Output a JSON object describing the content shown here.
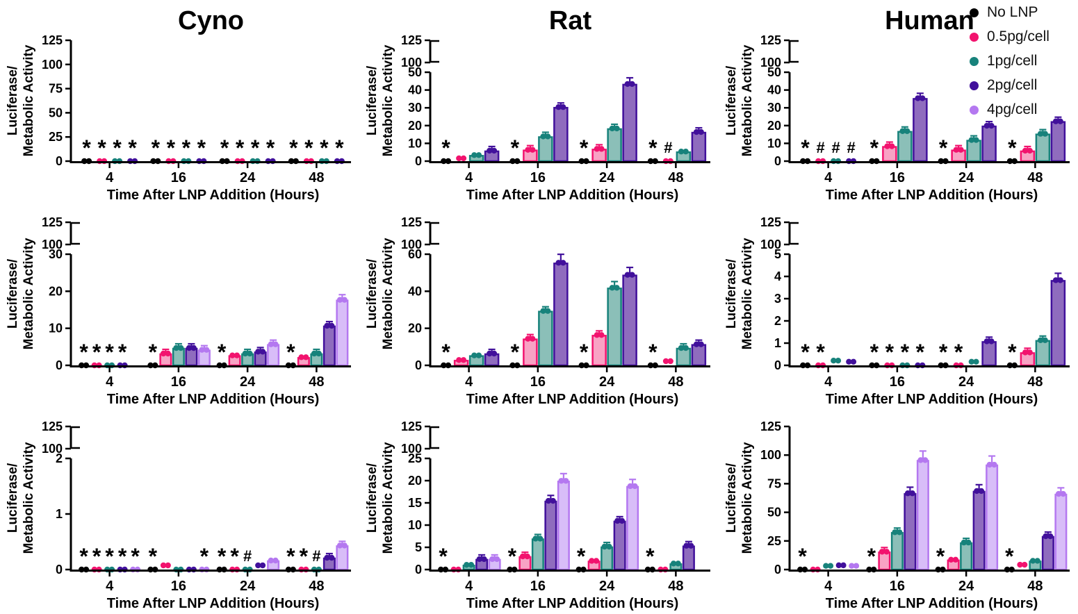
{
  "figure_title": "",
  "axis_labels": {
    "x": "Time After LNP Addition (Hours)",
    "y_line1": "Luciferase/",
    "y_line2": "Metabolic Activity"
  },
  "x_categories": [
    "4",
    "16",
    "24",
    "48"
  ],
  "legend": {
    "items": [
      {
        "label": "No LNP",
        "color": "#000000"
      },
      {
        "label": "0.5pg/cell",
        "color": "#F2136E"
      },
      {
        "label": "1pg/cell",
        "color": "#17827B"
      },
      {
        "label": "2pg/cell",
        "color": "#41109B"
      },
      {
        "label": "4pg/cell",
        "color": "#B478F0"
      }
    ]
  },
  "conditions": [
    {
      "name": "No LNP",
      "stroke": "#000000",
      "fill": "#000000"
    },
    {
      "name": "0.5pg/cell",
      "stroke": "#F2136E",
      "fill": "#F8A2C4"
    },
    {
      "name": "1pg/cell",
      "stroke": "#17827B",
      "fill": "#8BBFB8"
    },
    {
      "name": "2pg/cell",
      "stroke": "#41109B",
      "fill": "#8F6CBE"
    },
    {
      "name": "4pg/cell",
      "stroke": "#B478F0",
      "fill": "#D8BDF8"
    }
  ],
  "chart_data": [
    {
      "id": "cyno-row1",
      "type": "bar",
      "title": "Cyno",
      "axis": {
        "break": false,
        "max": 125,
        "ticks": [
          0,
          25,
          50,
          75,
          100,
          125
        ]
      },
      "series": [
        {
          "name": "No LNP",
          "cond": 0,
          "values": [
            0,
            0,
            0,
            0
          ]
        },
        {
          "name": "0.5pg/cell",
          "cond": 1,
          "values": [
            0,
            0,
            0,
            0
          ]
        },
        {
          "name": "1pg/cell",
          "cond": 2,
          "values": [
            0,
            0,
            0,
            0
          ]
        },
        {
          "name": "2pg/cell",
          "cond": 3,
          "values": [
            0,
            0,
            0,
            0
          ]
        }
      ],
      "marks": [
        {
          "t": 0,
          "s": 0,
          "sym": "*"
        },
        {
          "t": 0,
          "s": 1,
          "sym": "*"
        },
        {
          "t": 0,
          "s": 2,
          "sym": "*"
        },
        {
          "t": 0,
          "s": 3,
          "sym": "*"
        },
        {
          "t": 1,
          "s": 0,
          "sym": "*"
        },
        {
          "t": 1,
          "s": 1,
          "sym": "*"
        },
        {
          "t": 1,
          "s": 2,
          "sym": "*"
        },
        {
          "t": 1,
          "s": 3,
          "sym": "*"
        },
        {
          "t": 2,
          "s": 0,
          "sym": "*"
        },
        {
          "t": 2,
          "s": 1,
          "sym": "*"
        },
        {
          "t": 2,
          "s": 2,
          "sym": "*"
        },
        {
          "t": 2,
          "s": 3,
          "sym": "*"
        },
        {
          "t": 3,
          "s": 0,
          "sym": "*"
        },
        {
          "t": 3,
          "s": 1,
          "sym": "*"
        },
        {
          "t": 3,
          "s": 2,
          "sym": "*"
        },
        {
          "t": 3,
          "s": 3,
          "sym": "*"
        }
      ]
    },
    {
      "id": "rat-row1",
      "type": "bar",
      "title": "Rat",
      "axis": {
        "break": true,
        "lower_max": 50,
        "lower_ticks": [
          0,
          10,
          20,
          30,
          40,
          50
        ],
        "upper_ticks": [
          100,
          125
        ]
      },
      "series": [
        {
          "name": "No LNP",
          "cond": 0,
          "values": [
            0,
            0,
            0,
            0
          ]
        },
        {
          "name": "0.5pg/cell",
          "cond": 1,
          "values": [
            0.8,
            6,
            6.5,
            0.3
          ]
        },
        {
          "name": "1pg/cell",
          "cond": 2,
          "values": [
            3,
            13.5,
            18,
            5
          ]
        },
        {
          "name": "2pg/cell",
          "cond": 3,
          "values": [
            5.5,
            30,
            43,
            16
          ]
        }
      ],
      "marks": [
        {
          "t": 0,
          "s": 0,
          "sym": "*"
        },
        {
          "t": 1,
          "s": 0,
          "sym": "*"
        },
        {
          "t": 2,
          "s": 0,
          "sym": "*"
        },
        {
          "t": 3,
          "s": 0,
          "sym": "*"
        },
        {
          "t": 3,
          "s": 1,
          "sym": "#"
        }
      ]
    },
    {
      "id": "human-row1",
      "type": "bar",
      "title": "Human",
      "axis": {
        "break": true,
        "lower_max": 50,
        "lower_ticks": [
          0,
          10,
          20,
          30,
          40,
          50
        ],
        "upper_ticks": [
          100,
          125
        ]
      },
      "series": [
        {
          "name": "No LNP",
          "cond": 0,
          "values": [
            0,
            0,
            0,
            0
          ]
        },
        {
          "name": "0.5pg/cell",
          "cond": 1,
          "values": [
            0,
            8,
            6,
            5.5
          ]
        },
        {
          "name": "1pg/cell",
          "cond": 2,
          "values": [
            0,
            16.5,
            11.5,
            15
          ]
        },
        {
          "name": "2pg/cell",
          "cond": 3,
          "values": [
            0,
            35,
            19.5,
            22
          ]
        }
      ],
      "marks": [
        {
          "t": 0,
          "s": 0,
          "sym": "*"
        },
        {
          "t": 0,
          "s": 1,
          "sym": "#"
        },
        {
          "t": 0,
          "s": 2,
          "sym": "#"
        },
        {
          "t": 0,
          "s": 3,
          "sym": "#"
        },
        {
          "t": 1,
          "s": 0,
          "sym": "*"
        },
        {
          "t": 2,
          "s": 0,
          "sym": "*"
        },
        {
          "t": 3,
          "s": 0,
          "sym": "*"
        }
      ]
    },
    {
      "id": "cyno-row2",
      "type": "bar",
      "title": null,
      "axis": {
        "break": true,
        "lower_max": 30,
        "lower_ticks": [
          0,
          10,
          20,
          30
        ],
        "upper_ticks": [
          100,
          125
        ]
      },
      "series": [
        {
          "name": "No LNP",
          "cond": 0,
          "values": [
            0,
            0,
            0,
            0
          ]
        },
        {
          "name": "0.5pg/cell",
          "cond": 1,
          "values": [
            0,
            3,
            2.5,
            2
          ]
        },
        {
          "name": "1pg/cell",
          "cond": 2,
          "values": [
            0,
            4.5,
            3,
            3
          ]
        },
        {
          "name": "2pg/cell",
          "cond": 3,
          "values": [
            0,
            4.5,
            3.5,
            10.5
          ]
        },
        {
          "name": "4pg/cell",
          "cond": 4,
          "values": [
            null,
            4,
            5.5,
            17.5
          ]
        }
      ],
      "marks": [
        {
          "t": 0,
          "s": 0,
          "sym": "*"
        },
        {
          "t": 0,
          "s": 1,
          "sym": "*"
        },
        {
          "t": 0,
          "s": 2,
          "sym": "*"
        },
        {
          "t": 0,
          "s": 3,
          "sym": "*"
        },
        {
          "t": 1,
          "s": 0,
          "sym": "*"
        },
        {
          "t": 2,
          "s": 0,
          "sym": "*"
        },
        {
          "t": 3,
          "s": 0,
          "sym": "*"
        }
      ]
    },
    {
      "id": "rat-row2",
      "type": "bar",
      "title": null,
      "axis": {
        "break": true,
        "lower_max": 60,
        "lower_ticks": [
          0,
          20,
          40,
          60
        ],
        "upper_ticks": [
          100,
          125
        ]
      },
      "series": [
        {
          "name": "No LNP",
          "cond": 0,
          "values": [
            0,
            0,
            0,
            0
          ]
        },
        {
          "name": "0.5pg/cell",
          "cond": 1,
          "values": [
            2.5,
            14,
            16,
            1.5
          ]
        },
        {
          "name": "1pg/cell",
          "cond": 2,
          "values": [
            5,
            29,
            41.5,
            9
          ]
        },
        {
          "name": "2pg/cell",
          "cond": 3,
          "values": [
            6,
            55,
            48.5,
            11
          ]
        }
      ],
      "marks": [
        {
          "t": 0,
          "s": 0,
          "sym": "*"
        },
        {
          "t": 1,
          "s": 0,
          "sym": "*"
        },
        {
          "t": 2,
          "s": 0,
          "sym": "*"
        },
        {
          "t": 3,
          "s": 0,
          "sym": "*"
        }
      ]
    },
    {
      "id": "human-row2",
      "type": "bar",
      "title": null,
      "axis": {
        "break": true,
        "lower_max": 5,
        "lower_ticks": [
          0,
          1,
          2,
          3,
          4,
          5
        ],
        "upper_ticks": [
          100,
          125
        ]
      },
      "series": [
        {
          "name": "No LNP",
          "cond": 0,
          "values": [
            0,
            0,
            0,
            0
          ]
        },
        {
          "name": "0.5pg/cell",
          "cond": 1,
          "values": [
            0,
            0,
            0,
            0.55
          ]
        },
        {
          "name": "1pg/cell",
          "cond": 2,
          "values": [
            0.15,
            0,
            0.1,
            1.1
          ]
        },
        {
          "name": "2pg/cell",
          "cond": 3,
          "values": [
            0.1,
            0,
            1.05,
            3.8
          ]
        }
      ],
      "marks": [
        {
          "t": 0,
          "s": 0,
          "sym": "*"
        },
        {
          "t": 0,
          "s": 1,
          "sym": "*"
        },
        {
          "t": 1,
          "s": 0,
          "sym": "*"
        },
        {
          "t": 1,
          "s": 1,
          "sym": "*"
        },
        {
          "t": 1,
          "s": 2,
          "sym": "*"
        },
        {
          "t": 1,
          "s": 3,
          "sym": "*"
        },
        {
          "t": 2,
          "s": 0,
          "sym": "*"
        },
        {
          "t": 2,
          "s": 1,
          "sym": "*"
        },
        {
          "t": 3,
          "s": 0,
          "sym": "*"
        }
      ]
    },
    {
      "id": "cyno-row3",
      "type": "bar",
      "title": null,
      "axis": {
        "break": true,
        "lower_max": 2,
        "lower_ticks": [
          0,
          1,
          2
        ],
        "upper_ticks": [
          100,
          125
        ]
      },
      "series": [
        {
          "name": "No LNP",
          "cond": 0,
          "values": [
            0,
            0,
            0,
            0
          ]
        },
        {
          "name": "0.5pg/cell",
          "cond": 1,
          "values": [
            0,
            0.05,
            0,
            0
          ]
        },
        {
          "name": "1pg/cell",
          "cond": 2,
          "values": [
            0,
            0,
            0,
            0
          ]
        },
        {
          "name": "2pg/cell",
          "cond": 3,
          "values": [
            0,
            0,
            0.05,
            0.2
          ]
        },
        {
          "name": "4pg/cell",
          "cond": 4,
          "values": [
            0,
            0,
            0.15,
            0.42
          ]
        }
      ],
      "marks": [
        {
          "t": 0,
          "s": 0,
          "sym": "*"
        },
        {
          "t": 0,
          "s": 1,
          "sym": "*"
        },
        {
          "t": 0,
          "s": 2,
          "sym": "*"
        },
        {
          "t": 0,
          "s": 3,
          "sym": "*"
        },
        {
          "t": 0,
          "s": 4,
          "sym": "*"
        },
        {
          "t": 1,
          "s": 0,
          "sym": "*"
        },
        {
          "t": 1,
          "s": 4,
          "sym": "*"
        },
        {
          "t": 2,
          "s": 0,
          "sym": "*"
        },
        {
          "t": 2,
          "s": 1,
          "sym": "*"
        },
        {
          "t": 2,
          "s": 2,
          "sym": "#"
        },
        {
          "t": 3,
          "s": 0,
          "sym": "*"
        },
        {
          "t": 3,
          "s": 1,
          "sym": "*"
        },
        {
          "t": 3,
          "s": 2,
          "sym": "#"
        }
      ]
    },
    {
      "id": "rat-row3",
      "type": "bar",
      "title": null,
      "axis": {
        "break": true,
        "lower_max": 25,
        "lower_ticks": [
          0,
          5,
          10,
          15,
          20,
          25
        ],
        "upper_ticks": [
          100,
          125
        ]
      },
      "series": [
        {
          "name": "No LNP",
          "cond": 0,
          "values": [
            0,
            0,
            0,
            0
          ]
        },
        {
          "name": "0.5pg/cell",
          "cond": 1,
          "values": [
            0.3,
            2.8,
            1.8,
            0.3
          ]
        },
        {
          "name": "1pg/cell",
          "cond": 2,
          "values": [
            0.9,
            6.8,
            5,
            1.2
          ]
        },
        {
          "name": "2pg/cell",
          "cond": 3,
          "values": [
            2.2,
            15.3,
            10.8,
            5.2
          ]
        },
        {
          "name": "4pg/cell",
          "cond": 4,
          "values": [
            2.2,
            19.8,
            18.6,
            null
          ]
        }
      ],
      "marks": [
        {
          "t": 0,
          "s": 0,
          "sym": "*"
        },
        {
          "t": 1,
          "s": 0,
          "sym": "*"
        },
        {
          "t": 2,
          "s": 0,
          "sym": "*"
        },
        {
          "t": 3,
          "s": 0,
          "sym": "*"
        }
      ]
    },
    {
      "id": "human-row3",
      "type": "bar",
      "title": null,
      "axis": {
        "break": false,
        "max": 125,
        "ticks": [
          0,
          25,
          50,
          75,
          100,
          125
        ]
      },
      "series": [
        {
          "name": "No LNP",
          "cond": 0,
          "values": [
            0,
            0,
            0,
            0
          ]
        },
        {
          "name": "0.5pg/cell",
          "cond": 1,
          "values": [
            0.5,
            15,
            8,
            3
          ]
        },
        {
          "name": "1pg/cell",
          "cond": 2,
          "values": [
            2,
            32,
            23,
            7
          ]
        },
        {
          "name": "2pg/cell",
          "cond": 3,
          "values": [
            2.5,
            66,
            68,
            28.5
          ]
        },
        {
          "name": "4pg/cell",
          "cond": 4,
          "values": [
            2,
            95,
            91,
            65.5
          ]
        }
      ],
      "marks": [
        {
          "t": 0,
          "s": 0,
          "sym": "*"
        },
        {
          "t": 1,
          "s": 0,
          "sym": "*"
        },
        {
          "t": 2,
          "s": 0,
          "sym": "*"
        },
        {
          "t": 3,
          "s": 0,
          "sym": "*"
        }
      ]
    }
  ]
}
